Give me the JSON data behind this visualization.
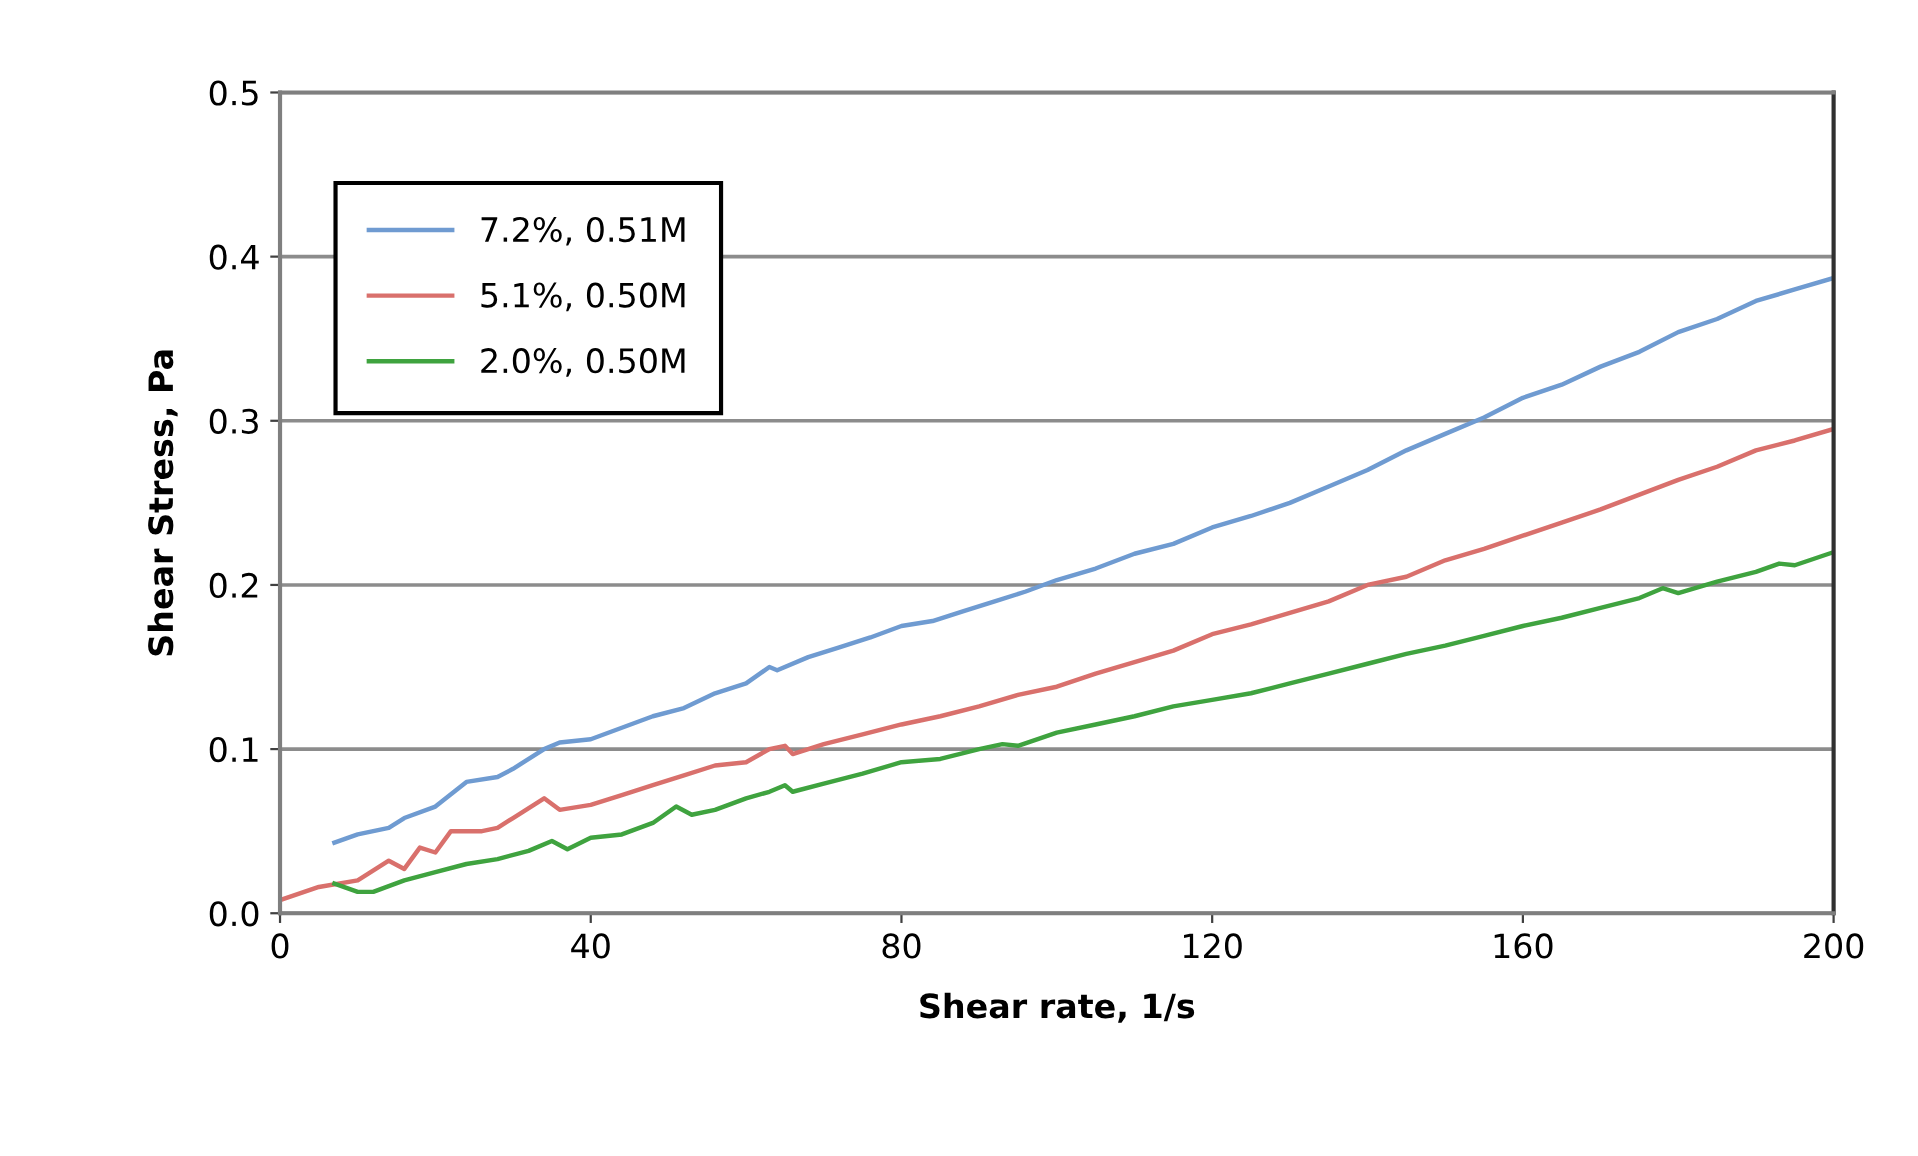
{
  "chart_data": {
    "type": "line",
    "xlabel": "Shear rate, 1/s",
    "ylabel": "Shear Stress, Pa",
    "xlim": [
      0,
      200
    ],
    "xticks": [
      0,
      40,
      80,
      120,
      160,
      200
    ],
    "ylim": [
      0,
      0.5
    ],
    "yticks": [
      {
        "value": 0,
        "label": "0.0"
      },
      0.1,
      0.2,
      0.3,
      0.4,
      0.5
    ],
    "grid": "y",
    "legend": "top left",
    "marker": "none",
    "line_style": "solid",
    "series": [
      {
        "name": "7.2%, 0.51M",
        "color": "#6f9bd1",
        "x": [
          7,
          10,
          14,
          16,
          20,
          24,
          28,
          30,
          34,
          36,
          40,
          44,
          48,
          52,
          56,
          60,
          63,
          64,
          68,
          72,
          76,
          80,
          84,
          88,
          92,
          96,
          100,
          105,
          110,
          115,
          120,
          125,
          130,
          135,
          140,
          145,
          150,
          155,
          160,
          165,
          170,
          175,
          180,
          185,
          190,
          195,
          200
        ],
        "values": [
          0.043,
          0.048,
          0.052,
          0.058,
          0.065,
          0.08,
          0.083,
          0.088,
          0.1,
          0.104,
          0.106,
          0.113,
          0.12,
          0.125,
          0.134,
          0.14,
          0.15,
          0.148,
          0.156,
          0.162,
          0.168,
          0.175,
          0.178,
          0.184,
          0.19,
          0.196,
          0.203,
          0.21,
          0.219,
          0.225,
          0.235,
          0.242,
          0.25,
          0.26,
          0.27,
          0.282,
          0.292,
          0.302,
          0.314,
          0.322,
          0.333,
          0.342,
          0.354,
          0.362,
          0.373,
          0.38,
          0.387
        ]
      },
      {
        "name": "5.1%, 0.50M",
        "color": "#d9706c",
        "x": [
          0,
          5,
          10,
          14,
          16,
          18,
          20,
          22,
          26,
          28,
          30,
          34,
          36,
          40,
          44,
          48,
          52,
          56,
          60,
          63,
          65,
          66,
          70,
          75,
          80,
          85,
          90,
          95,
          100,
          105,
          110,
          115,
          120,
          125,
          130,
          135,
          140,
          145,
          150,
          155,
          160,
          165,
          170,
          175,
          180,
          185,
          190,
          195,
          200
        ],
        "values": [
          0.008,
          0.016,
          0.02,
          0.032,
          0.027,
          0.04,
          0.037,
          0.05,
          0.05,
          0.052,
          0.058,
          0.07,
          0.063,
          0.066,
          0.072,
          0.078,
          0.084,
          0.09,
          0.092,
          0.1,
          0.102,
          0.097,
          0.103,
          0.109,
          0.115,
          0.12,
          0.126,
          0.133,
          0.138,
          0.146,
          0.153,
          0.16,
          0.17,
          0.176,
          0.183,
          0.19,
          0.2,
          0.205,
          0.215,
          0.222,
          0.23,
          0.238,
          0.246,
          0.255,
          0.264,
          0.272,
          0.282,
          0.288,
          0.295
        ]
      },
      {
        "name": "2.0%, 0.50M",
        "color": "#3fa33f",
        "x": [
          7,
          10,
          12,
          16,
          20,
          24,
          28,
          32,
          35,
          37,
          40,
          44,
          48,
          51,
          53,
          56,
          60,
          63,
          65,
          66,
          70,
          75,
          80,
          85,
          90,
          93,
          95,
          100,
          105,
          110,
          115,
          120,
          125,
          130,
          135,
          140,
          145,
          150,
          155,
          160,
          165,
          170,
          175,
          178,
          180,
          185,
          190,
          193,
          195,
          200
        ],
        "values": [
          0.018,
          0.013,
          0.013,
          0.02,
          0.025,
          0.03,
          0.033,
          0.038,
          0.044,
          0.039,
          0.046,
          0.048,
          0.055,
          0.065,
          0.06,
          0.063,
          0.07,
          0.074,
          0.078,
          0.074,
          0.079,
          0.085,
          0.092,
          0.094,
          0.1,
          0.103,
          0.102,
          0.11,
          0.115,
          0.12,
          0.126,
          0.13,
          0.134,
          0.14,
          0.146,
          0.152,
          0.158,
          0.163,
          0.169,
          0.175,
          0.18,
          0.186,
          0.192,
          0.198,
          0.195,
          0.202,
          0.208,
          0.213,
          0.212,
          0.22
        ]
      }
    ]
  }
}
